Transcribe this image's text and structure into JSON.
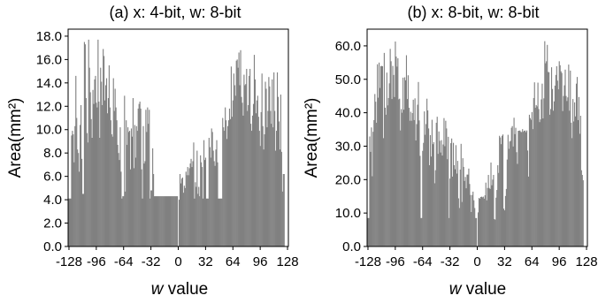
{
  "chart_data": [
    {
      "type": "bar",
      "title": "(a) x: 4-bit, w: 8-bit",
      "xlabel_prefix": "w",
      "xlabel_suffix": " value",
      "ylabel": "Area(mm²)",
      "xlim": [
        -129,
        129
      ],
      "ylim": [
        0,
        18.6
      ],
      "yticks": [
        0,
        2,
        4,
        6,
        8,
        10,
        12,
        14,
        16,
        18
      ],
      "ytick_labels": [
        "0.0",
        "2.0",
        "4.0",
        "6.0",
        "8.0",
        "10.0",
        "12.0",
        "14.0",
        "16.0",
        "18.0"
      ],
      "xticks": [
        -128,
        -96,
        -64,
        -32,
        0,
        32,
        64,
        96,
        128
      ],
      "xtick_labels": [
        "-128",
        "-96",
        "-64",
        "-32",
        "0",
        "32",
        "64",
        "96",
        "128"
      ],
      "bar_color": "#808080",
      "x_range": [
        -128,
        127
      ],
      "values": [
        4.1,
        4.1,
        4.1,
        9.5,
        9.9,
        9.6,
        7.2,
        10.3,
        14.6,
        11.0,
        8.3,
        8.0,
        6.4,
        10.4,
        12.1,
        7.5,
        4.5,
        4.5,
        17.5,
        17.3,
        12.7,
        9.7,
        8.9,
        17.7,
        15.3,
        13.2,
        10.9,
        9.3,
        13.4,
        12.2,
        14.3,
        14.6,
        12.3,
        11.9,
        17.7,
        12.4,
        9.3,
        15.3,
        14.1,
        12.1,
        16.9,
        16.3,
        12.5,
        13.8,
        14.4,
        11.4,
        12.7,
        15.5,
        11.9,
        10.8,
        9.6,
        9.4,
        14.4,
        11.6,
        13.5,
        11.9,
        10.8,
        8.7,
        8.0,
        7.4,
        10.2,
        6.4,
        4.1,
        4.3,
        4.3,
        12.9,
        4.7,
        10.8,
        8.7,
        10.2,
        9.8,
        9.9,
        6.6,
        10.1,
        9.4,
        12.7,
        6.7,
        10.4,
        7.6,
        10.3,
        9.9,
        11.8,
        12.2,
        12.4,
        11.8,
        6.6,
        4.1,
        10.3,
        7.1,
        7.3,
        11.7,
        9.8,
        11.9,
        10.5,
        11.7,
        4.1,
        4.8,
        4.8,
        8.4,
        6.2,
        4.3,
        4.3,
        4.3,
        4.3,
        4.3,
        4.3,
        4.3,
        4.3,
        4.3,
        4.3,
        4.3,
        4.3,
        4.3,
        4.3,
        4.3,
        4.3,
        4.3,
        4.3,
        4.3,
        4.3,
        4.3,
        4.3,
        4.3,
        4.3,
        4.3,
        4.3,
        4.3,
        4.3,
        0.0,
        4.0,
        6.2,
        5.4,
        5.8,
        5.9,
        4.6,
        5.2,
        5.0,
        6.4,
        6.1,
        6.8,
        6.1,
        6.7,
        7.1,
        7.5,
        6.8,
        7.3,
        8.9,
        4.1,
        5.5,
        5.1,
        8.2,
        4.5,
        5.1,
        4.3,
        7.8,
        7.2,
        6.8,
        4.1,
        9.1,
        7.4,
        7.6,
        4.1,
        4.1,
        4.1,
        9.3,
        8.5,
        7.6,
        10.1,
        9.8,
        8.2,
        7.3,
        6.9,
        8.3,
        9.1,
        7.2,
        4.1,
        4.1,
        4.1,
        4.1,
        4.1,
        11.0,
        10.2,
        9.9,
        11.9,
        10.8,
        9.2,
        10.3,
        10.8,
        11.8,
        10.9,
        15.4,
        11.1,
        12.5,
        14.8,
        13.8,
        12.9,
        15.9,
        16.0,
        15.3,
        16.6,
        13.8,
        16.8,
        12.8,
        12.3,
        11.2,
        14.7,
        13.8,
        13.9,
        15.2,
        11.6,
        12.1,
        14.6,
        15.2,
        10.5,
        9.9,
        11.2,
        12.2,
        16.4,
        14.3,
        11.4,
        12.5,
        12.9,
        11.1,
        9.9,
        8.6,
        11.5,
        14.8,
        10.3,
        8.3,
        9.6,
        14.1,
        13.5,
        10.2,
        11.6,
        14.5,
        13.7,
        11.6,
        10.5,
        14.3,
        10.2,
        14.9,
        11.6,
        8.2,
        9.9,
        14.9,
        12.8,
        10.7,
        8.3,
        13.0,
        8.1,
        4.7,
        6.2,
        6.2
      ]
    },
    {
      "type": "bar",
      "title": "(b) x: 8-bit, w: 8-bit",
      "xlabel_prefix": "w",
      "xlabel_suffix": " value",
      "ylabel": "Area(mm²)",
      "xlim": [
        -129,
        129
      ],
      "ylim": [
        0,
        65
      ],
      "yticks": [
        0,
        10,
        20,
        30,
        40,
        50,
        60
      ],
      "ytick_labels": [
        "0.0",
        "10.0",
        "20.0",
        "30.0",
        "40.0",
        "50.0",
        "60.0"
      ],
      "xticks": [
        -128,
        -96,
        -64,
        -32,
        0,
        32,
        64,
        96,
        128
      ],
      "xtick_labels": [
        "-128",
        "-96",
        "-64",
        "-32",
        "0",
        "32",
        "64",
        "96",
        "128"
      ],
      "bar_color": "#808080",
      "x_range": [
        -128,
        127
      ],
      "values": [
        8.5,
        8.5,
        32.9,
        28.3,
        35.6,
        21.0,
        34.3,
        37.8,
        45.6,
        43.3,
        37.0,
        54.5,
        44.5,
        55.0,
        47.4,
        53.9,
        54.0,
        53.9,
        32.4,
        57.9,
        41.5,
        39.4,
        52.0,
        42.2,
        44.4,
        48.8,
        59.1,
        55.4,
        44.1,
        54.0,
        51.3,
        44.7,
        61.3,
        56.8,
        53.8,
        56.3,
        44.0,
        44.2,
        34.7,
        41.1,
        40.0,
        50.5,
        40.9,
        50.6,
        49.7,
        57.2,
        44.1,
        51.2,
        41.5,
        37.6,
        40.3,
        37.6,
        39.9,
        43.9,
        37.8,
        44.3,
        31.7,
        36.6,
        42.4,
        49.2,
        37.7,
        27.1,
        8.5,
        8.5,
        28.6,
        31.0,
        40.4,
        33.4,
        36.6,
        44.2,
        40.7,
        35.3,
        24.3,
        33.3,
        26.9,
        37.9,
        30.6,
        31.2,
        18.9,
        22.8,
        37.0,
        38.8,
        27.7,
        34.4,
        31.6,
        28.1,
        31.8,
        27.2,
        30.5,
        38.4,
        30.0,
        37.6,
        35.3,
        26.1,
        32.8,
        8.5,
        20.3,
        30.9,
        32.3,
        20.9,
        31.0,
        24.3,
        23.1,
        30.3,
        21.8,
        25.6,
        14.4,
        11.5,
        23.0,
        30.7,
        13.3,
        26.4,
        23.8,
        19.6,
        20.8,
        17.4,
        21.5,
        21.5,
        23.3,
        18.7,
        15.4,
        10.3,
        15.4,
        16.4,
        13.8,
        11.5,
        8.5,
        8.5,
        0.0,
        10.2,
        14.5,
        14.3,
        14.8,
        14.9,
        14.7,
        14.9,
        14.3,
        15.3,
        19.1,
        13.8,
        17.5,
        21.4,
        17.5,
        17.2,
        25.1,
        18.3,
        20.0,
        21.4,
        8.2,
        8.0,
        14.6,
        16.9,
        24.3,
        22.0,
        33.1,
        32.6,
        30.6,
        33.1,
        33.5,
        11.3,
        10.8,
        15.1,
        17.2,
        26.0,
        33.4,
        29.2,
        31.4,
        31.6,
        35.5,
        36.0,
        29.9,
        38.5,
        33.6,
        35.5,
        28.2,
        24.7,
        34.6,
        34.6,
        34.7,
        34.3,
        34.2,
        35.1,
        34.3,
        34.6,
        34.7,
        34.2,
        34.7,
        28.7,
        20.9,
        39.4,
        38.4,
        37.9,
        40.2,
        35.1,
        44.4,
        49.1,
        41.5,
        42.3,
        41.9,
        49.0,
        41.1,
        37.2,
        38.0,
        44.0,
        48.7,
        38.3,
        44.3,
        61.4,
        54.8,
        55.4,
        60.3,
        52.2,
        52.1,
        39.4,
        41.1,
        53.6,
        47.1,
        40.6,
        43.4,
        48.1,
        51.3,
        53.9,
        49.6,
        47.0,
        55.4,
        54.2,
        52.4,
        51.9,
        40.5,
        45.0,
        48.2,
        52.9,
        45.0,
        43.5,
        44.6,
        54.4,
        40.6,
        52.6,
        37.0,
        32.4,
        44.1,
        37.4,
        43.1,
        38.9,
        48.7,
        50.7,
        37.8,
        44.7,
        33.7,
        39.1,
        22.8,
        21.4,
        19.8
      ]
    }
  ]
}
